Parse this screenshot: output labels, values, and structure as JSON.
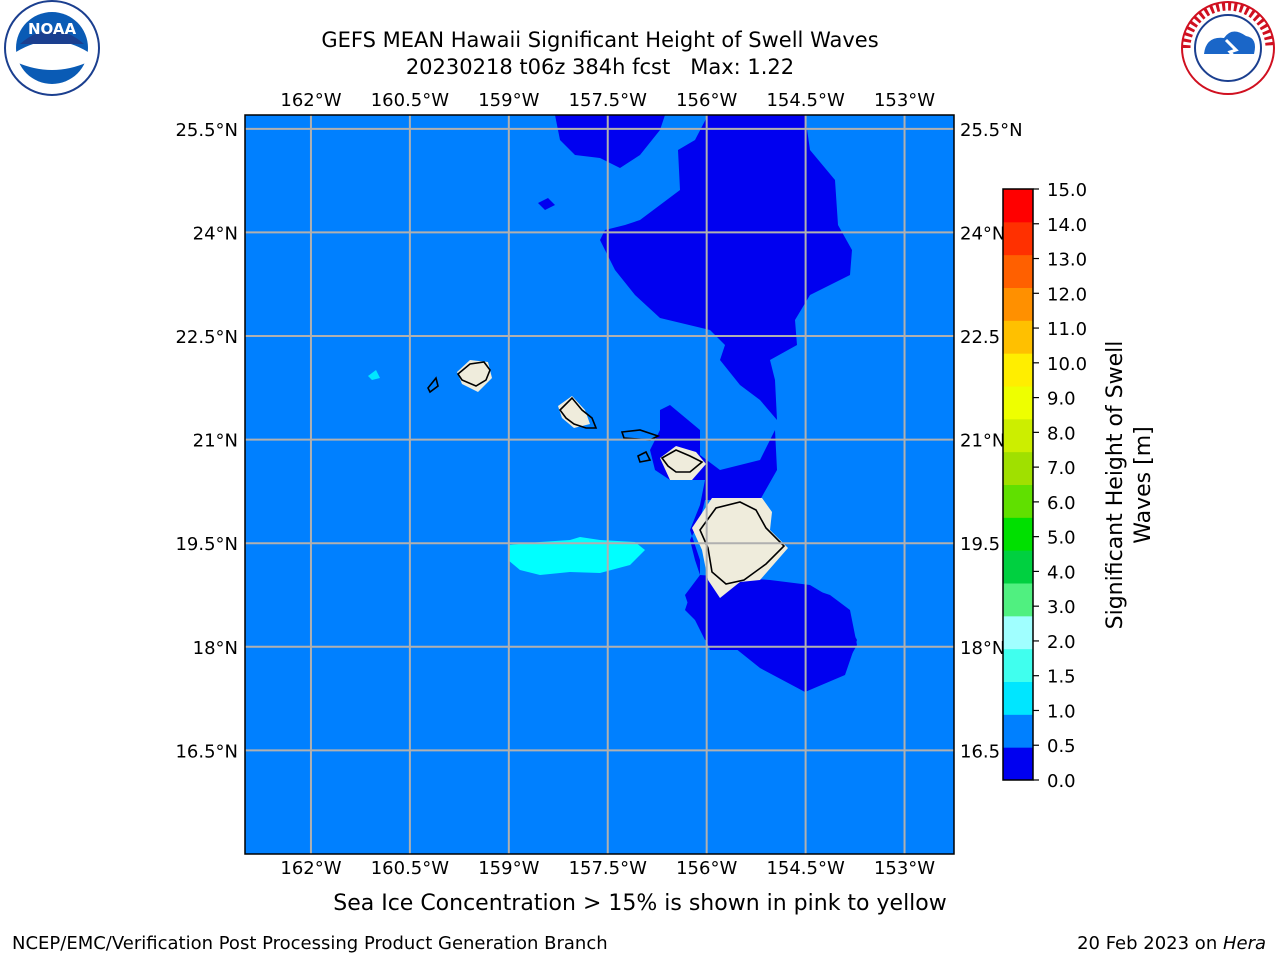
{
  "title_line1": "GEFS MEAN Hawaii Significant Height of Swell Waves",
  "title_line2": "20230218 t06z 384h fcst   Max: 1.22",
  "lon_labels": [
    "162°W",
    "160.5°W",
    "159°W",
    "157.5°W",
    "156°W",
    "154.5°W",
    "153°W"
  ],
  "lon_values": [
    -162,
    -160.5,
    -159,
    -157.5,
    -156,
    -154.5,
    -153
  ],
  "lat_labels": [
    "25.5°N",
    "24°N",
    "22.5°N",
    "21°N",
    "19.5°N",
    "18°N",
    "16.5°N"
  ],
  "lat_values": [
    25.5,
    24,
    22.5,
    21,
    19.5,
    18,
    16.5
  ],
  "right_lat_labels": [
    "25.5°N",
    "24°N",
    "22.5",
    "21°N",
    "19.5",
    "18°N",
    "16.5"
  ],
  "map_extent": {
    "lon_min": -163,
    "lon_max": -152.25,
    "lat_min": 15.0,
    "lat_max": 25.7
  },
  "colorbar": {
    "label_line1": "Significant Height of Swell",
    "label_line2": "Waves [m]",
    "ticks": [
      "0.0",
      "0.5",
      "1.0",
      "1.5",
      "2.0",
      "3.0",
      "4.0",
      "5.0",
      "6.0",
      "7.0",
      "8.0",
      "9.0",
      "10.0",
      "11.0",
      "12.0",
      "13.0",
      "14.0",
      "15.0"
    ],
    "colors": [
      "#0000f0",
      "#0080ff",
      "#00e6ff",
      "#40ffee",
      "#a0ffff",
      "#50f080",
      "#00d040",
      "#00e000",
      "#60e000",
      "#a0e000",
      "#ccee00",
      "#eeff00",
      "#ffee00",
      "#ffc000",
      "#ff9000",
      "#ff6000",
      "#ff3000",
      "#ff0000"
    ]
  },
  "colors": {
    "background_sea": "#0080ff",
    "low_swell": "#0000f0",
    "mid_swell": "#00ffff",
    "land": "#efecdc",
    "grid": "#b0b0b0"
  },
  "logos": {
    "noaa": "NOAA",
    "nws": "NATIONAL WEATHER SERVICE",
    "noaa_ring": "NATIONAL OCEANIC AND ATMOSPHERIC ADMINISTRATION · U.S. DEPARTMENT OF COMMERCE"
  },
  "note": "Sea Ice Concentration > 15% is shown in pink to yellow",
  "credit_left": "NCEP/EMC/Verification Post Processing Product Generation Branch",
  "credit_right_date": "20 Feb 2023 on ",
  "credit_right_host": "Hera"
}
